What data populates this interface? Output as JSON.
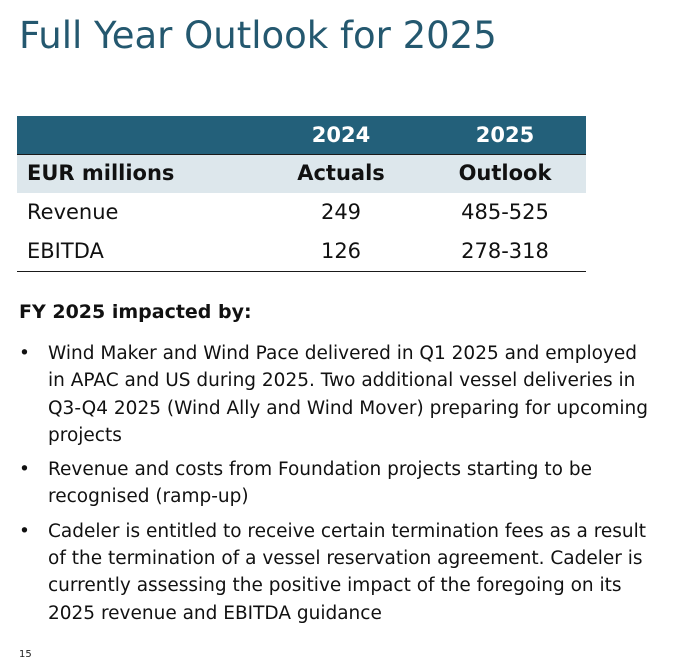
{
  "title": "Full Year Outlook for 2025",
  "table": {
    "year_row": {
      "label": "",
      "col1": "2024",
      "col2": "2025"
    },
    "header_row": {
      "label": "EUR millions",
      "col1": "Actuals",
      "col2": "Outlook"
    },
    "rows": [
      {
        "label": "Revenue",
        "col1": "249",
        "col2": "485-525"
      },
      {
        "label": "EBITDA",
        "col1": "126",
        "col2": "278-318"
      }
    ]
  },
  "impact": {
    "heading": "FY 2025 impacted by:",
    "bullet_glyph": "•",
    "bullets": [
      "Wind Maker and Wind Pace delivered in Q1 2025 and employed in APAC and US during 2025. Two additional vessel deliveries in Q3-Q4 2025 (Wind Ally and Wind Mover) preparing for upcoming projects",
      "Revenue and costs from Foundation projects starting to be recognised (ramp-up)",
      "Cadeler is entitled to receive certain termination fees as a result of the termination of a vessel reservation agreement. Cadeler is currently assessing the positive impact of the foregoing on its 2025 revenue and EBITDA guidance"
    ]
  },
  "page_number": "15",
  "colors": {
    "title": "#24586f",
    "year_row_bg": "#23607a",
    "header_row_bg": "#dde7ec"
  }
}
